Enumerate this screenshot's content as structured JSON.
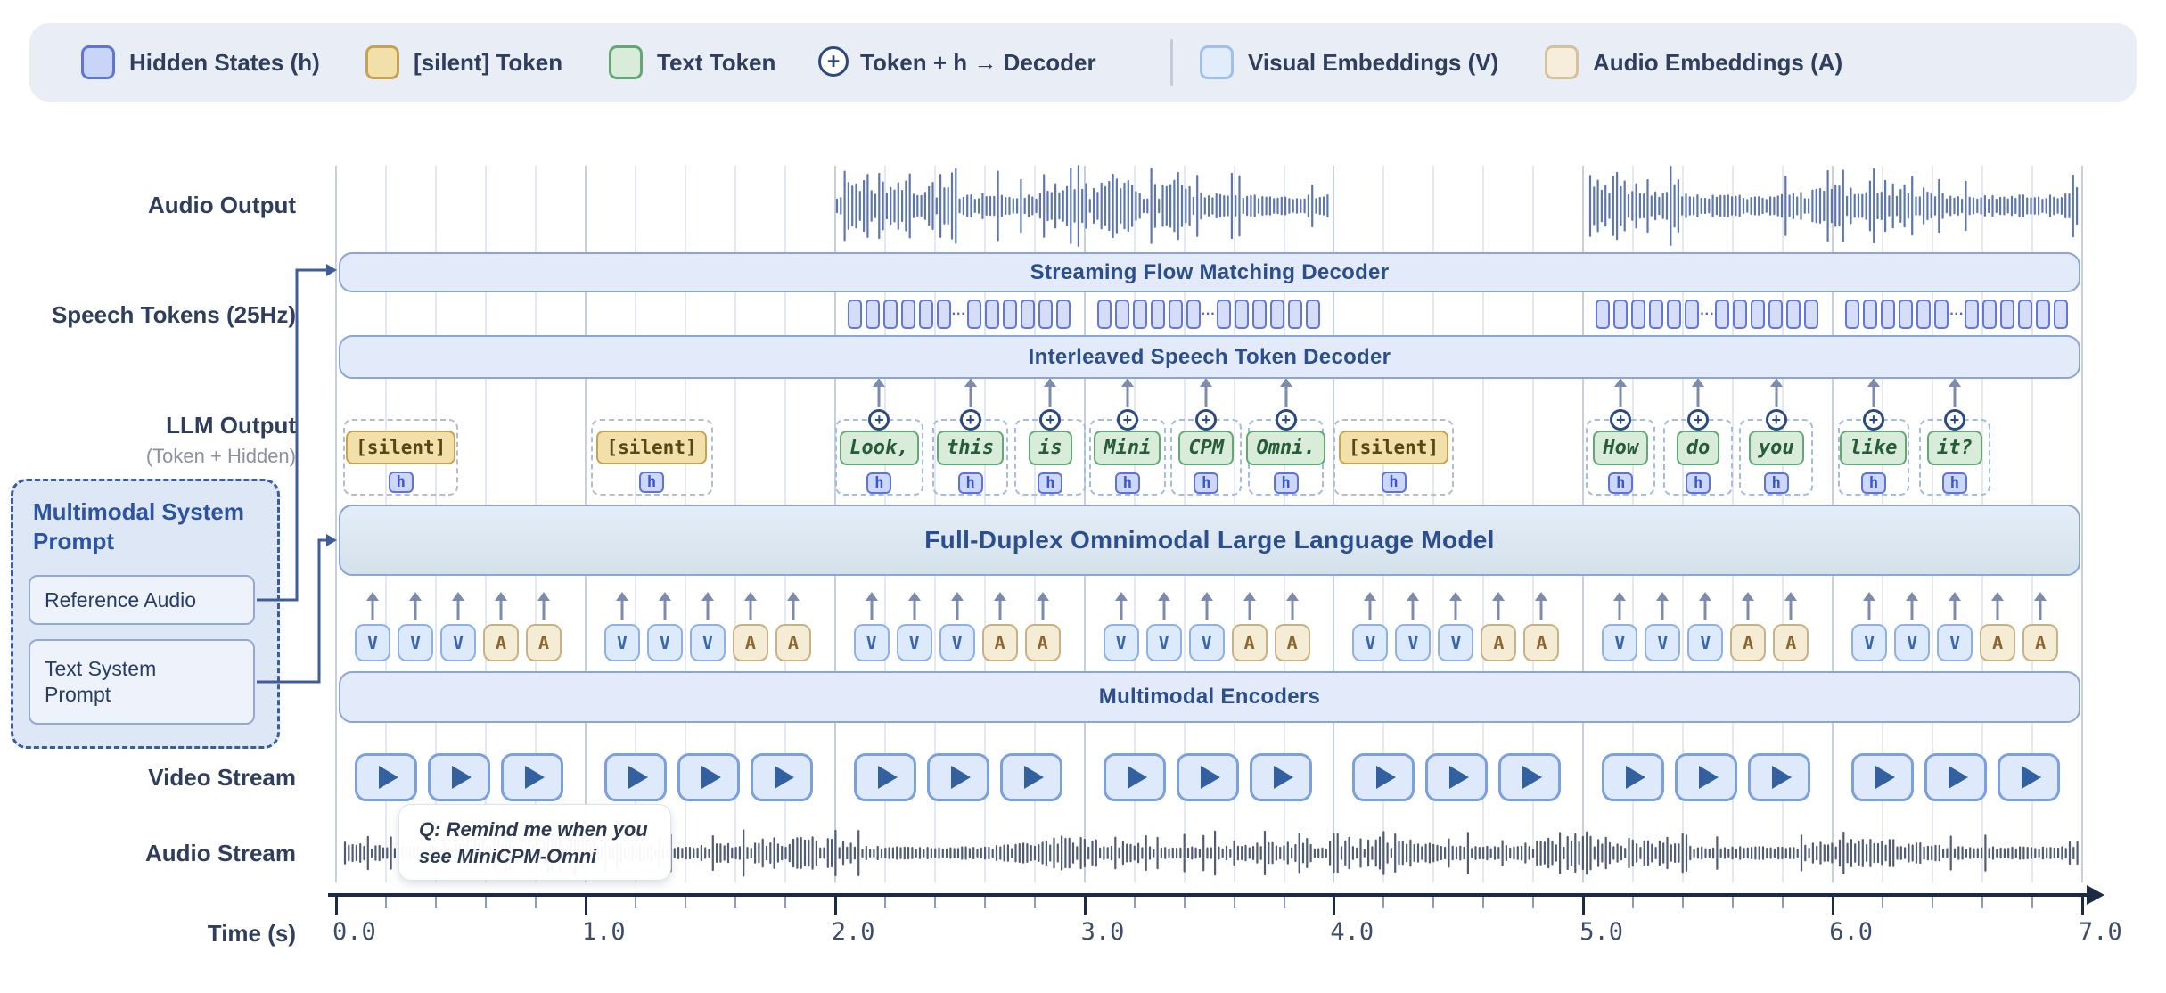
{
  "legend": {
    "items": [
      {
        "type": "hidden",
        "label": "Hidden States (h)"
      },
      {
        "type": "silent",
        "label": "[silent] Token"
      },
      {
        "type": "text",
        "label": "Text Token"
      },
      {
        "type": "plus",
        "label": "Token + h → Decoder"
      },
      {
        "type": "visual",
        "label": "Visual Embeddings (V)"
      },
      {
        "type": "audio",
        "label": "Audio Embeddings (A)"
      }
    ]
  },
  "row_labels": {
    "audio_output": "Audio Output",
    "speech_tokens": "Speech Tokens (25Hz)",
    "llm_output": "LLM Output",
    "llm_output_sub": "(Token + Hidden)",
    "video_stream": "Video Stream",
    "audio_stream": "Audio Stream",
    "time": "Time (s)"
  },
  "bars": {
    "flow_decoder": "Streaming Flow Matching Decoder",
    "speech_decoder": "Interleaved Speech Token Decoder",
    "llm": "Full-Duplex Omnimodal Large Language Model",
    "encoders": "Multimodal Encoders"
  },
  "system_prompt": {
    "title": "Multimodal System Prompt",
    "items": [
      "Reference Audio",
      "Text System Prompt"
    ]
  },
  "hidden_chip_label": "h",
  "plus_glyph": "+",
  "llm_tokens": [
    {
      "label": "[silent]",
      "type": "silent",
      "t": 0.03,
      "dur": 0.46
    },
    {
      "label": "[silent]",
      "type": "silent",
      "t": 1.02,
      "dur": 0.49
    },
    {
      "label": "Look,",
      "type": "text",
      "t": 2.0,
      "dur": 0.355
    },
    {
      "label": "this",
      "type": "text",
      "t": 2.39,
      "dur": 0.305
    },
    {
      "label": "is",
      "type": "text",
      "t": 2.72,
      "dur": 0.287
    },
    {
      "label": "Mini",
      "type": "text",
      "t": 3.02,
      "dur": 0.305
    },
    {
      "label": "CPM",
      "type": "text",
      "t": 3.345,
      "dur": 0.287
    },
    {
      "label": "Omni.",
      "type": "text",
      "t": 3.655,
      "dur": 0.305
    },
    {
      "label": "[silent]",
      "type": "silent",
      "t": 4.0,
      "dur": 0.48
    },
    {
      "label": "How",
      "type": "text",
      "t": 5.01,
      "dur": 0.28
    },
    {
      "label": "do",
      "type": "text",
      "t": 5.32,
      "dur": 0.28
    },
    {
      "label": "you",
      "type": "text",
      "t": 5.625,
      "dur": 0.297
    },
    {
      "label": "like",
      "type": "text",
      "t": 6.02,
      "dur": 0.287
    },
    {
      "label": "it?",
      "type": "text",
      "t": 6.345,
      "dur": 0.287
    }
  ],
  "speech_token_groups": {
    "seconds": [
      2,
      3,
      5,
      6
    ],
    "cells_before": 6,
    "cells_after": 6,
    "ellipsis": "···"
  },
  "embedding_row": {
    "pattern_per_second": [
      "V",
      "V",
      "V",
      "A",
      "A"
    ],
    "seconds": 7
  },
  "video_stream": {
    "frames_per_second": 3,
    "seconds": 7
  },
  "audio_output_segments": [
    {
      "start": 2.0,
      "end": 3.98
    },
    {
      "start": 5.02,
      "end": 6.99
    }
  ],
  "audio_stream_segments": [
    {
      "start": 0.03,
      "end": 6.99
    }
  ],
  "tooltip": {
    "line1": "Q: Remind me when you",
    "line2": "see MiniCPM-Omni"
  },
  "axis": {
    "labels": [
      "0.0",
      "1.0",
      "2.0",
      "3.0",
      "4.0",
      "5.0",
      "6.0",
      "7.0"
    ],
    "minor_step": 0.2,
    "max": 7
  },
  "colors": {
    "hidden_fill": "#c9d4f9",
    "hidden_border": "#5d74d9",
    "silent_fill": "#f1e0a9",
    "silent_border": "#c9a24d",
    "text_fill": "#d8ecd9",
    "text_border": "#62a873",
    "visual_fill": "#e2edfc",
    "visual_border": "#9dc1ea",
    "audio_fill": "#f6eeda",
    "audio_border": "#d4c29a",
    "bar_fill": "#e3ebfa",
    "bar_border": "#8aa5d8",
    "accent_navy": "#2b4e8c",
    "axis": "#1d2a44",
    "waveform_output": "#5d77ae",
    "waveform_stream": "#505c76",
    "connector": "#3d5e99"
  }
}
